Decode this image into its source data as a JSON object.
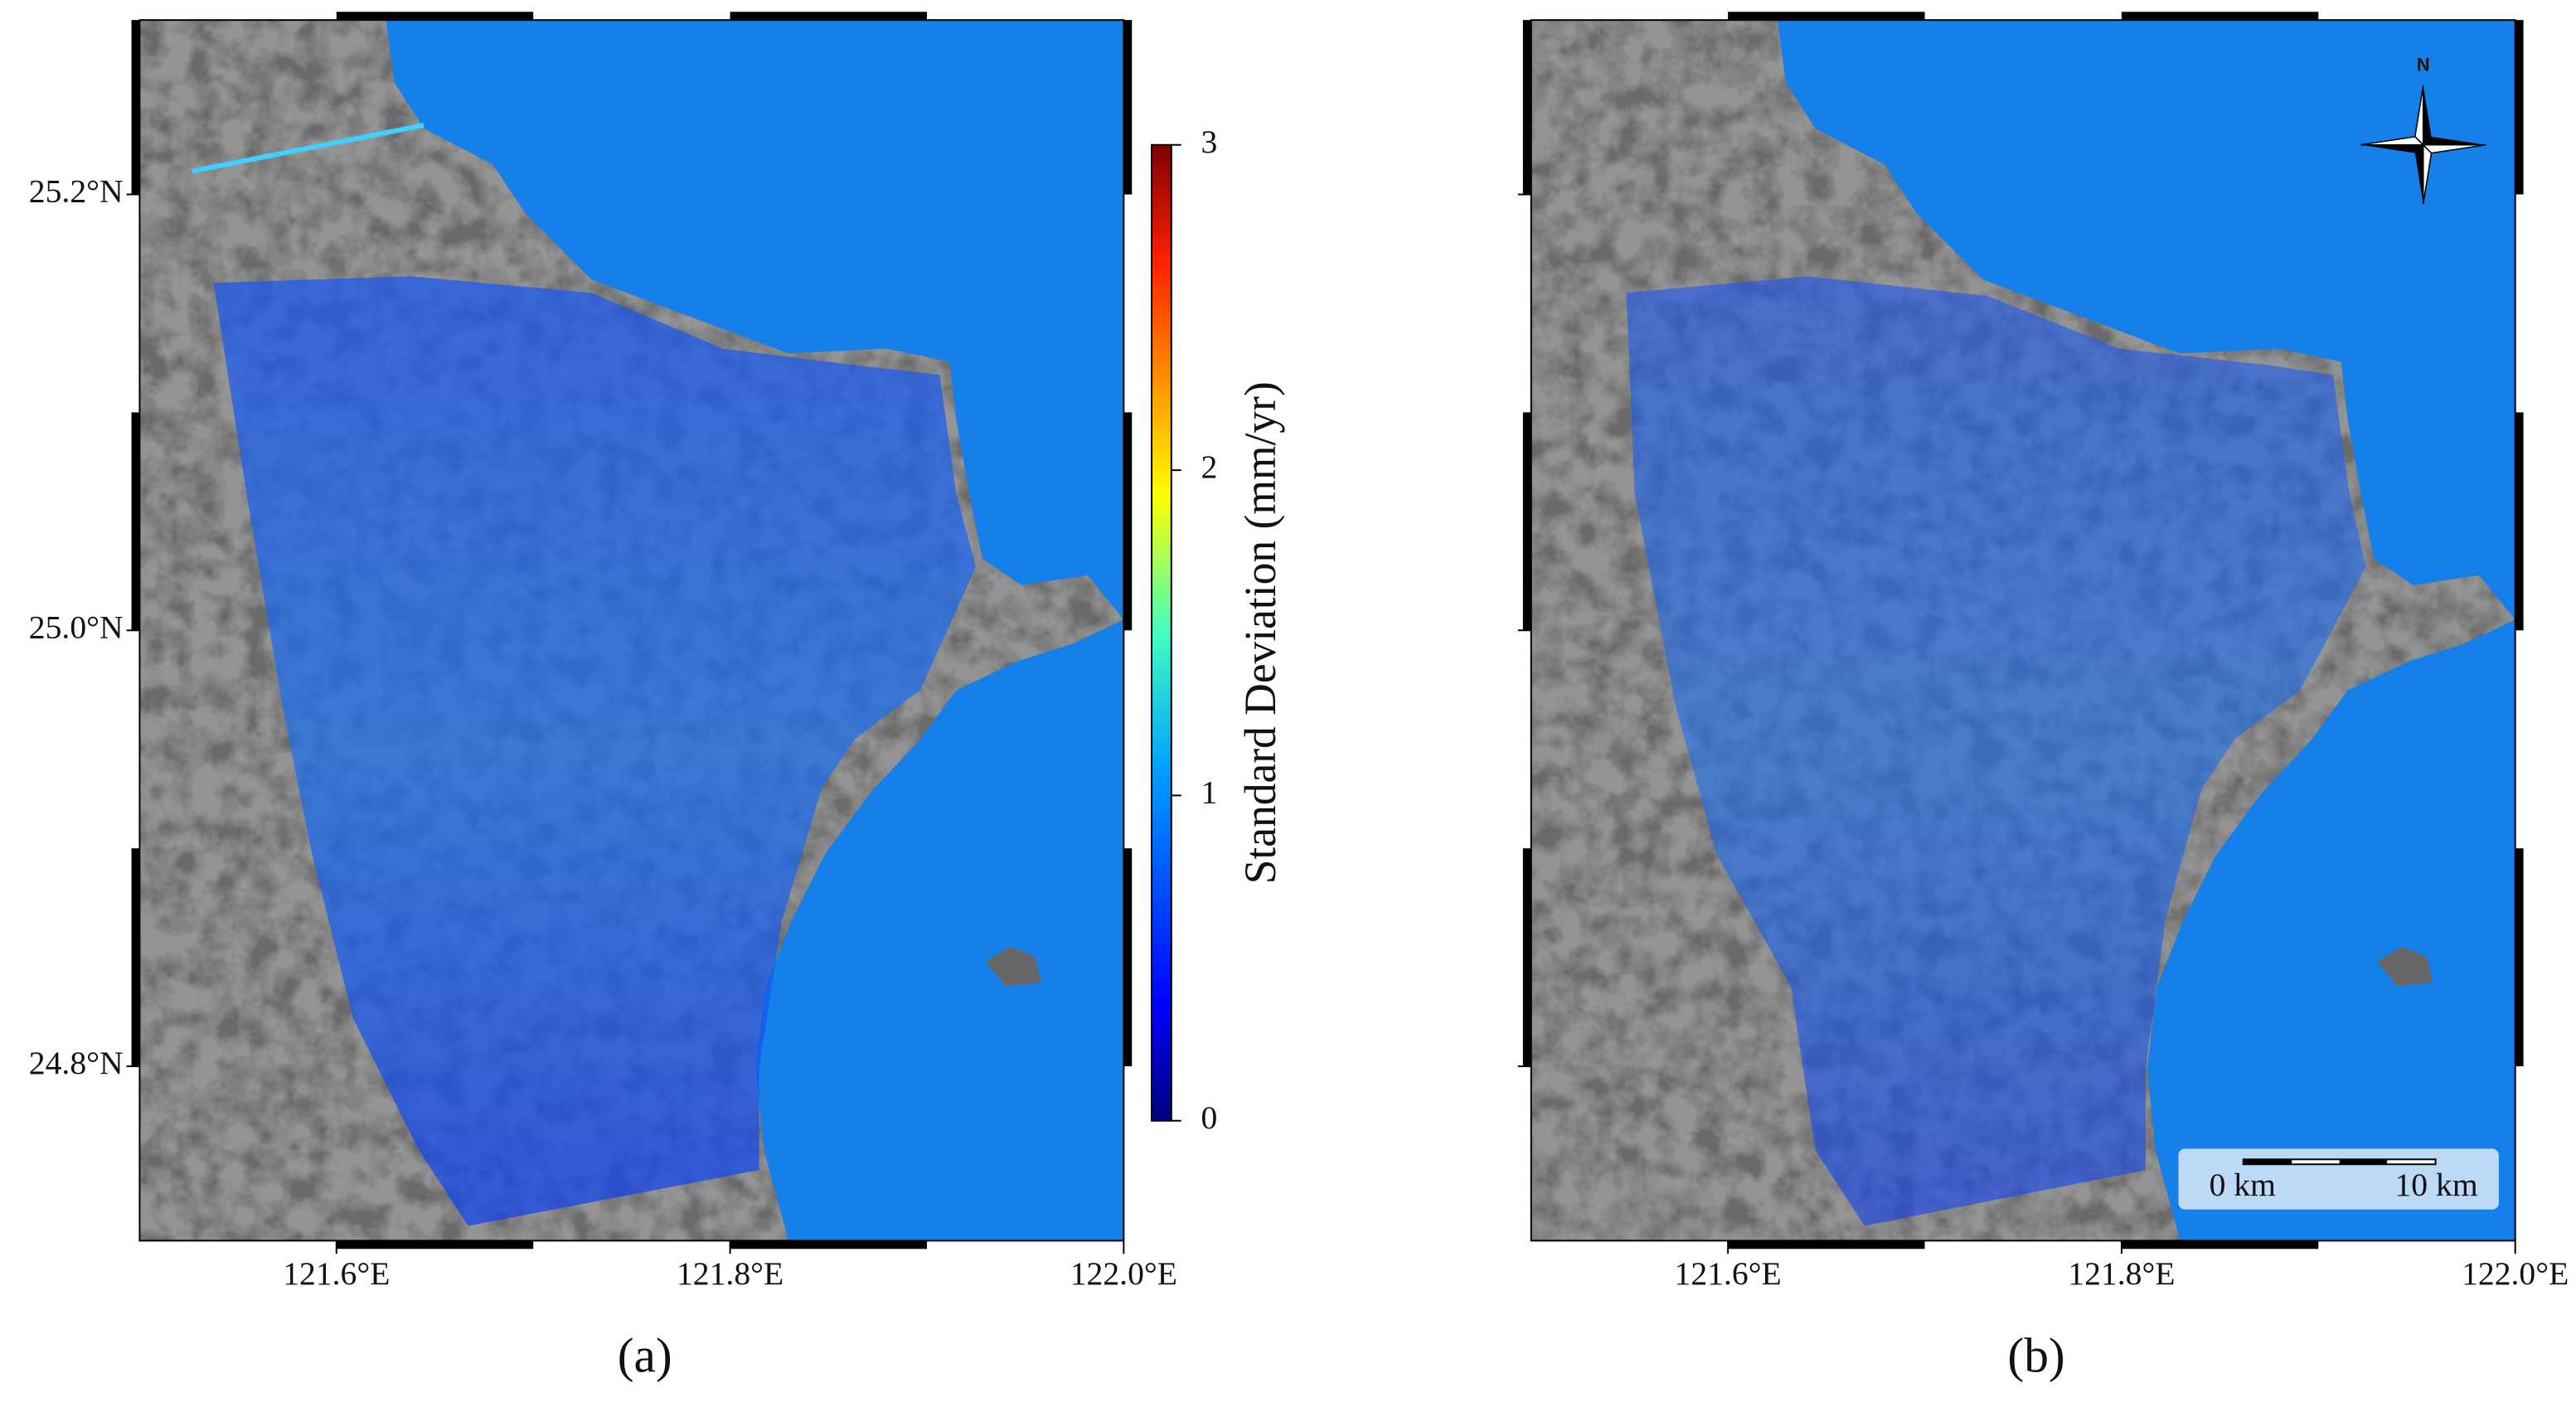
{
  "map": {
    "xlim": [
      121.5,
      122.0
    ],
    "ylim": [
      24.72,
      25.28
    ],
    "xticks": [
      {
        "value": 121.6,
        "label": "121.6°E"
      },
      {
        "value": 121.8,
        "label": "121.8°E"
      },
      {
        "value": 122.0,
        "label": "122.0°E"
      }
    ],
    "yticks": [
      {
        "value": 24.8,
        "label": "24.8°N"
      },
      {
        "value": 25.0,
        "label": "25.0°N"
      },
      {
        "value": 25.2,
        "label": "25.2°N"
      }
    ]
  },
  "colorbar": {
    "label": "Standard Deviation (mm/yr)",
    "lim": [
      0,
      3
    ],
    "ticks": [
      0,
      1,
      2,
      3
    ]
  },
  "panels": [
    {
      "caption": "(a)"
    },
    {
      "caption": "(b)"
    }
  ],
  "north_label": "N",
  "scale_bar": {
    "labels": [
      "0 km",
      "10 km"
    ]
  }
}
